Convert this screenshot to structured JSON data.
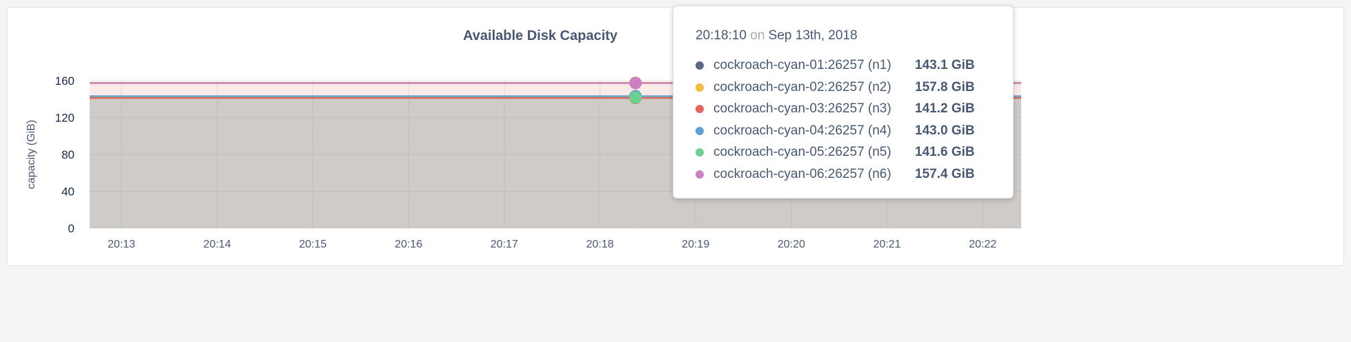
{
  "chart_data": {
    "type": "area",
    "title": "Available Disk Capacity",
    "ylabel": "capacity (GiB)",
    "xlabel": "",
    "ylim": [
      0,
      160
    ],
    "yticks": [
      "0",
      "40",
      "80",
      "120",
      "160"
    ],
    "xticks": [
      "20:13",
      "20:14",
      "20:15",
      "20:16",
      "20:17",
      "20:18",
      "20:19",
      "20:20",
      "20:21",
      "20:22"
    ],
    "grid": true,
    "series": [
      {
        "name": "cockroach-cyan-01:26257 (n1)",
        "color": "#5a6785",
        "value": 143.1
      },
      {
        "name": "cockroach-cyan-02:26257 (n2)",
        "color": "#f0bd45",
        "value": 157.8
      },
      {
        "name": "cockroach-cyan-03:26257 (n3)",
        "color": "#e2675a",
        "value": 141.2
      },
      {
        "name": "cockroach-cyan-04:26257 (n4)",
        "color": "#5d9fd6",
        "value": 143.0
      },
      {
        "name": "cockroach-cyan-05:26257 (n5)",
        "color": "#6fcf90",
        "value": 141.6
      },
      {
        "name": "cockroach-cyan-06:26257 (n6)",
        "color": "#cc7fc1",
        "value": 157.4
      }
    ]
  },
  "tooltip": {
    "time": "20:18:10",
    "on": "on",
    "date": "Sep 13th, 2018",
    "rows": [
      {
        "name": "cockroach-cyan-01:26257 (n1)",
        "value": "143.1 GiB"
      },
      {
        "name": "cockroach-cyan-02:26257 (n2)",
        "value": "157.8 GiB"
      },
      {
        "name": "cockroach-cyan-03:26257 (n3)",
        "value": "141.2 GiB"
      },
      {
        "name": "cockroach-cyan-04:26257 (n4)",
        "value": "143.0 GiB"
      },
      {
        "name": "cockroach-cyan-05:26257 (n5)",
        "value": "141.6 GiB"
      },
      {
        "name": "cockroach-cyan-06:26257 (n6)",
        "value": "157.4 GiB"
      }
    ]
  }
}
